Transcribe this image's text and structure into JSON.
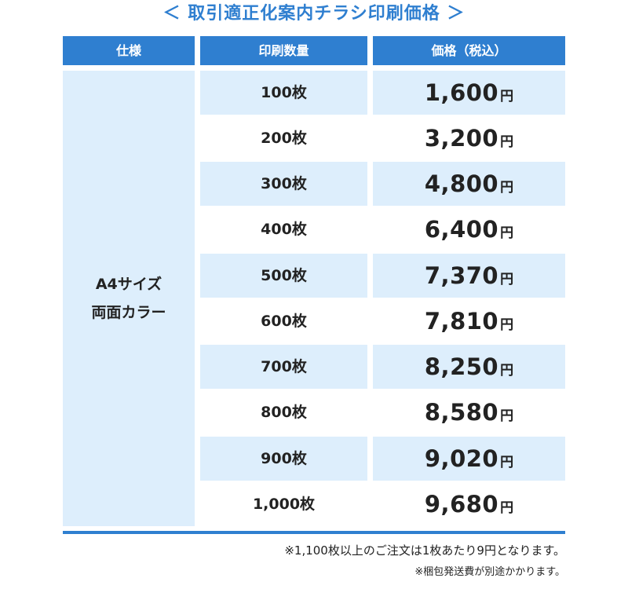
{
  "title": "＜ 取引適正化案内チラシ印刷価格 ＞",
  "headers": {
    "spec": "仕様",
    "quantity": "印刷数量",
    "price": "価格（税込）"
  },
  "spec": {
    "line1": "A4サイズ",
    "line2": "両面カラー"
  },
  "currency_unit": "円",
  "rows": [
    {
      "quantity": "100枚",
      "price": "1,600"
    },
    {
      "quantity": "200枚",
      "price": "3,200"
    },
    {
      "quantity": "300枚",
      "price": "4,800"
    },
    {
      "quantity": "400枚",
      "price": "6,400"
    },
    {
      "quantity": "500枚",
      "price": "7,370"
    },
    {
      "quantity": "600枚",
      "price": "7,810"
    },
    {
      "quantity": "700枚",
      "price": "8,250"
    },
    {
      "quantity": "800枚",
      "price": "8,580"
    },
    {
      "quantity": "900枚",
      "price": "9,020"
    },
    {
      "quantity": "1,000枚",
      "price": "9,680"
    }
  ],
  "notes": {
    "note1": "※1,100枚以上のご注文は1枚あたり9円となります。",
    "note2": "※梱包発送費が別途かかります。"
  },
  "colors": {
    "accent": "#2f7fd0",
    "row_shade": "#ddeefc"
  }
}
